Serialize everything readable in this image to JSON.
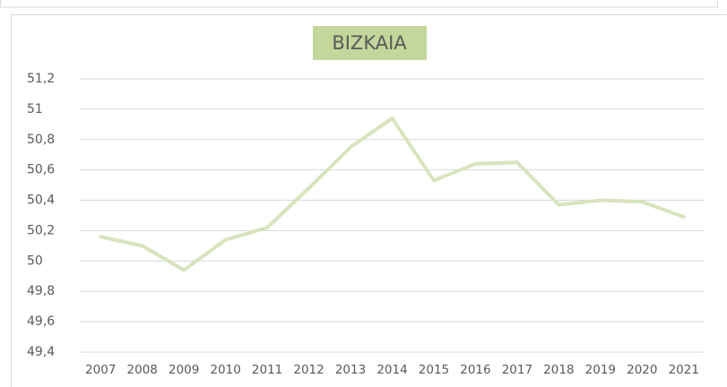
{
  "chart_data": {
    "type": "line",
    "title": "BIZKAIA",
    "categories": [
      "2007",
      "2008",
      "2009",
      "2010",
      "2011",
      "2012",
      "2013",
      "2014",
      "2015",
      "2016",
      "2017",
      "2018",
      "2019",
      "2020",
      "2021"
    ],
    "series": [
      {
        "name": "BIZKAIA",
        "color": "#d7e4bd",
        "values": [
          50.16,
          50.1,
          49.94,
          50.14,
          50.22,
          50.48,
          50.75,
          50.94,
          50.53,
          50.64,
          50.65,
          50.37,
          50.4,
          50.39,
          50.29
        ]
      }
    ],
    "ylim": [
      49.4,
      51.2
    ],
    "yticks": [
      {
        "value": 49.4,
        "label": "49,4"
      },
      {
        "value": 49.6,
        "label": "49,6"
      },
      {
        "value": 49.8,
        "label": "49,8"
      },
      50,
      {
        "value": 50.2,
        "label": "50,2"
      },
      {
        "value": 50.4,
        "label": "50,4"
      },
      {
        "value": 50.6,
        "label": "50,6"
      },
      {
        "value": 50.8,
        "label": "50,8"
      },
      51,
      {
        "value": 51.2,
        "label": "51,2"
      }
    ],
    "grid": true
  }
}
